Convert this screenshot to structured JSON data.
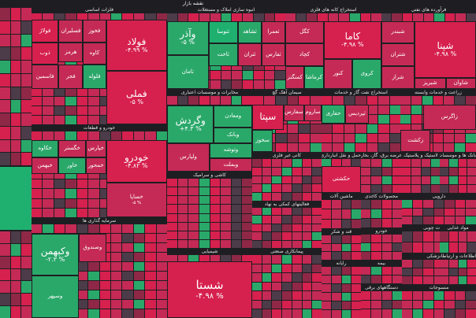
{
  "page_title": "نقشه بازار",
  "colors": {
    "strong_red": "#d6204e",
    "red": "#c42a55",
    "dark_red": "#8e2846",
    "neutral": "#4c3b48",
    "green": "#2aa86a",
    "strong_green": "#1fb070",
    "background": "#1e1e22"
  },
  "sectors": [
    {
      "title": "فلزات اساسی",
      "tiles": [
        {
          "symbol": "فولاد",
          "change": "-۴.۹۹ %",
          "color": "strong_red"
        },
        {
          "symbol": "فملی",
          "change": "-۵ %",
          "color": "strong_red"
        },
        {
          "symbol": "فخوز",
          "change": "",
          "color": "red"
        },
        {
          "symbol": "کاوه",
          "change": "",
          "color": "red"
        },
        {
          "symbol": "فسلیران",
          "change": "",
          "color": "red"
        },
        {
          "symbol": "هرمز",
          "change": "",
          "color": "red"
        },
        {
          "symbol": "فولاژ",
          "change": "",
          "color": "strong_red"
        },
        {
          "symbol": "ذوب",
          "change": "",
          "color": "strong_red"
        },
        {
          "symbol": "فلوله",
          "change": "",
          "color": "green"
        },
        {
          "symbol": "فجر",
          "change": "",
          "color": "red"
        },
        {
          "symbol": "فاسمین",
          "change": "",
          "color": "red"
        }
      ]
    },
    {
      "title": "انبوه سازی املاک و مستغلات",
      "tiles": [
        {
          "symbol": "وآذر",
          "change": "-۵ %",
          "color": "green"
        },
        {
          "symbol": "ثامان",
          "change": "",
          "color": "green"
        },
        {
          "symbol": "ثنوسا",
          "change": "",
          "color": "strong_green"
        },
        {
          "symbol": "ثاخت",
          "change": "",
          "color": "green"
        },
        {
          "symbol": "ثشاهد",
          "change": "",
          "color": "green"
        },
        {
          "symbol": "ثعمرا",
          "change": "",
          "color": "red"
        },
        {
          "symbol": "ثتران",
          "change": "",
          "color": "red"
        },
        {
          "symbol": "ثفارس",
          "change": "",
          "color": "red"
        }
      ]
    },
    {
      "title": "استخراج کانه های فلزی",
      "tiles": [
        {
          "symbol": "کاما",
          "change": "-۴.۹۸ %",
          "color": "strong_red"
        },
        {
          "symbol": "کگل",
          "change": "",
          "color": "red"
        },
        {
          "symbol": "کچاد",
          "change": "",
          "color": "red"
        },
        {
          "symbol": "کنور",
          "change": "",
          "color": "red"
        },
        {
          "symbol": "کروی",
          "change": "",
          "color": "green"
        },
        {
          "symbol": "کمنگنز",
          "change": "",
          "color": "red"
        },
        {
          "symbol": "کرماشا",
          "change": "",
          "color": "green"
        }
      ]
    },
    {
      "title": "فرآورده های نفتی",
      "tiles": [
        {
          "symbol": "شپنا",
          "change": "-۴.۹۸ %",
          "color": "strong_red"
        },
        {
          "symbol": "شبندر",
          "change": "",
          "color": "red"
        },
        {
          "symbol": "شتران",
          "change": "",
          "color": "red"
        },
        {
          "symbol": "شراز",
          "change": "",
          "color": "red"
        },
        {
          "symbol": "شبریز",
          "change": "",
          "color": "red"
        },
        {
          "symbol": "شاوان",
          "change": "",
          "color": "red"
        },
        {
          "symbol": "شسپا",
          "change": "",
          "color": "red"
        },
        {
          "symbol": "شبهرن",
          "change": "",
          "color": "strong_red"
        }
      ]
    },
    {
      "title": "خودرو و قطعات",
      "tiles": [
        {
          "symbol": "خودرو",
          "change": "-۴.۸۲ %",
          "color": "strong_red"
        },
        {
          "symbol": "خساپا",
          "change": "-۵ %",
          "color": "red"
        },
        {
          "symbol": "خکاوه",
          "change": "",
          "color": "green"
        },
        {
          "symbol": "خگستر",
          "change": "",
          "color": "red"
        },
        {
          "symbol": "خپارس",
          "change": "",
          "color": "red"
        },
        {
          "symbol": "خبهمن",
          "change": "",
          "color": "red"
        },
        {
          "symbol": "خاور",
          "change": "",
          "color": "green"
        },
        {
          "symbol": "خمحور",
          "change": "",
          "color": "red"
        }
      ]
    },
    {
      "title": "مخابرات و موسسات اعتباری",
      "tiles": [
        {
          "symbol": "وگردش",
          "change": "+۴.۳ %",
          "color": "green"
        },
        {
          "symbol": "ومعادن",
          "change": "",
          "color": "green"
        },
        {
          "symbol": "وبانک",
          "change": "",
          "color": "green"
        },
        {
          "symbol": "ولپارس",
          "change": "",
          "color": "red"
        },
        {
          "symbol": "وتوشه",
          "change": "",
          "color": "green"
        },
        {
          "symbol": "وبملت",
          "change": "",
          "color": "red"
        }
      ]
    },
    {
      "title": "سیمان آهک گچ",
      "tiles": [
        {
          "symbol": "سپتا",
          "change": "",
          "color": "strong_red"
        },
        {
          "symbol": "سفارس",
          "change": "",
          "color": "red"
        },
        {
          "symbol": "ساروم",
          "change": "",
          "color": "red"
        },
        {
          "symbol": "سخوز",
          "change": "",
          "color": "green"
        }
      ]
    },
    {
      "title": "استخراج نفت گاز و خدمات",
      "tiles": [
        {
          "symbol": "حفاری",
          "change": "",
          "color": "green"
        },
        {
          "symbol": "ثپردیس",
          "change": "",
          "color": "red"
        }
      ]
    },
    {
      "title": "زراعت و خدمات وابسته",
      "tiles": [
        {
          "symbol": "زاگرس",
          "change": "",
          "color": "red"
        },
        {
          "symbol": "زکشت",
          "change": "",
          "color": "red"
        }
      ]
    },
    {
      "title": "شیمیایی",
      "tiles": [
        {
          "symbol": "شستا",
          "change": "-۴.۹۸ %",
          "color": "strong_red"
        }
      ]
    },
    {
      "title": "سرمایه گذاری ها",
      "tiles": [
        {
          "symbol": "وکبهمن",
          "change": "-۲.۳ %",
          "color": "green"
        },
        {
          "symbol": "وسپهر",
          "change": "",
          "color": "green"
        },
        {
          "symbol": "وصندوق",
          "change": "",
          "color": "red"
        }
      ]
    },
    {
      "title": "حمل و نقل انبارداری",
      "tiles": [
        {
          "symbol": "حکشتی",
          "change": "",
          "color": "strong_red"
        }
      ]
    },
    {
      "title": "محصولات کاغذی",
      "tiles": []
    },
    {
      "title": "عرضه برق، گاز، بخار و آب گرم",
      "tiles": []
    },
    {
      "title": "لاستیک و پلاستیک",
      "tiles": []
    },
    {
      "title": "پیمانکاری صنعتی",
      "tiles": []
    },
    {
      "title": "بانک ها و موسسات اعتباری",
      "tiles": []
    },
    {
      "title": "رایانه",
      "tiles": []
    }
  ],
  "extra_titles": [
    "کانی غیر فلزی",
    "فعالیتهای کمکی به نهاد",
    "ماشین آلات",
    "خودرو",
    "دارویی",
    "محصولات چوبی",
    "ابزار پزشکی",
    "منسوجات",
    "بیمه",
    "قند و شکر",
    "کاشی و سرامیک",
    "مواد غذایی",
    "استخراج زغال سنگ",
    "اطلاعات و ارتباطات",
    "دستگاههای برقی",
    "مخابرات"
  ],
  "bottom_labels": [
    "شستا",
    "ستران",
    "وکبهمن",
    "وسپهر",
    "خساپا",
    "خودرو",
    "فملی",
    "فولاد",
    "کاما",
    "شپنا",
    "وگردش"
  ]
}
